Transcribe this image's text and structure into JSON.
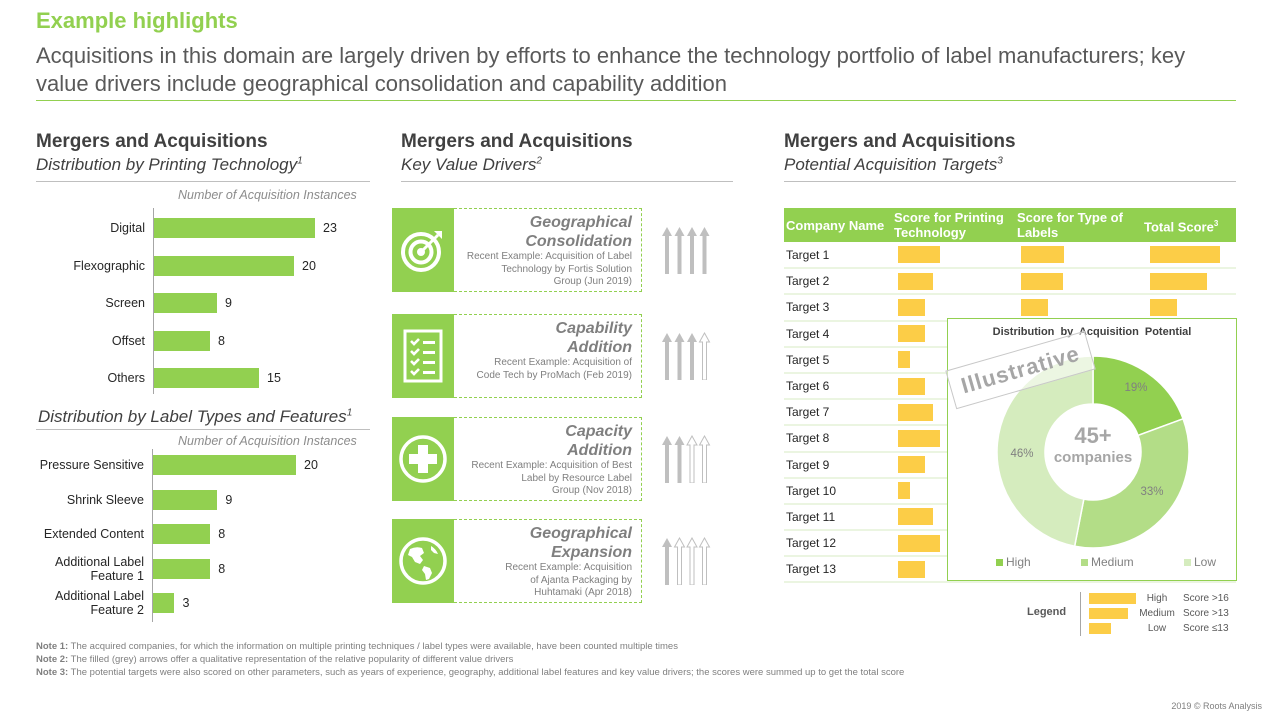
{
  "header": {
    "title": "Example highlights",
    "subtitle": "Acquisitions in this domain are largely driven by efforts to enhance the technology portfolio of label manufacturers; key value drivers include geographical consolidation and capability addition"
  },
  "left_section": {
    "title": "Mergers and Acquisitions",
    "subtitle": "Distribution by Printing Technology",
    "subtitle_sup": "1",
    "second_subtitle": "Distribution by Label Types and Features",
    "second_subtitle_sup": "1"
  },
  "middle_section": {
    "title": "Mergers and Acquisitions",
    "subtitle": "Key Value Drivers",
    "subtitle_sup": "2",
    "drivers": [
      {
        "name_line1": "Geographical",
        "name_line2": "Consolidation",
        "icon": "target-icon",
        "example_lines": [
          "Recent Example:  Acquisition of Label",
          "Technology by Fortis Solution",
          "Group (Jun 2019)"
        ],
        "popularity_filled": 4,
        "popularity_total": 4
      },
      {
        "name_line1": "Capability",
        "name_line2": "Addition",
        "icon": "checklist-icon",
        "example_lines": [
          "Recent Example:  Acquisition of",
          "Code Tech by ProMach  (Feb 2019)"
        ],
        "popularity_filled": 3,
        "popularity_total": 4
      },
      {
        "name_line1": "Capacity",
        "name_line2": "Addition",
        "icon": "plus-circle-icon",
        "example_lines": [
          "Recent Example:  Acquisition of Best",
          "Label by Resource Label",
          "Group (Nov 2018)"
        ],
        "popularity_filled": 2,
        "popularity_total": 4
      },
      {
        "name_line1": "Geographical",
        "name_line2": "Expansion",
        "icon": "globe-icon",
        "example_lines": [
          "Recent Example:  Acquisition",
          "of Ajanta Packaging  by",
          "Huhtamaki  (Apr 2018)"
        ],
        "popularity_filled": 1,
        "popularity_total": 4
      }
    ]
  },
  "right_section": {
    "title": "Mergers and Acquisitions",
    "subtitle": "Potential Acquisition Targets",
    "subtitle_sup": "3",
    "table": {
      "headers": [
        "Company Name",
        "Score for Printing Technology",
        "Score for Type of Labels",
        "Total Score"
      ],
      "total_header_sup": "3",
      "score_scale_note": "bar values are relative score levels (fraction of the longest bar)",
      "rows": [
        {
          "name": "Target 1",
          "printing": 0.6,
          "labels": 0.61,
          "total": 1.0
        },
        {
          "name": "Target 2",
          "printing": 0.5,
          "labels": 0.6,
          "total": 0.81
        },
        {
          "name": "Target 3",
          "printing": 0.39,
          "labels": 0.39,
          "total": 0.39
        },
        {
          "name": "Target 4",
          "printing": 0.39
        },
        {
          "name": "Target 5",
          "printing": 0.17
        },
        {
          "name": "Target 6",
          "printing": 0.39
        },
        {
          "name": "Target 7",
          "printing": 0.5
        },
        {
          "name": "Target 8",
          "printing": 0.6
        },
        {
          "name": "Target 9",
          "printing": 0.39
        },
        {
          "name": "Target 10",
          "printing": 0.17
        },
        {
          "name": "Target 11",
          "printing": 0.5
        },
        {
          "name": "Target 12",
          "printing": 0.6
        },
        {
          "name": "Target 13",
          "printing": 0.39
        }
      ]
    },
    "stamp": "Illustrative",
    "legend": {
      "label": "Legend",
      "items": [
        {
          "level": "High",
          "rule": "Score >16",
          "relative": 1.0
        },
        {
          "level": "Medium",
          "rule": "Score >13",
          "relative": 0.83
        },
        {
          "level": "Low",
          "rule": "Score ≤13",
          "relative": 0.47
        }
      ]
    }
  },
  "notes": [
    {
      "label": "Note 1:",
      "text": " The  acquired companies,  for which the information on multiple  printing techniques / label types were available, have been  counted multiple  times"
    },
    {
      "label": "Note 2:",
      "text": " The  filled (grey) arrows offer a qualitative representation of the relative popularity of different value drivers"
    },
    {
      "label": "Note 3:",
      "text": " The  potential targets were also scored on other  parameters, such as years of experience, geography, additional label  features and key value drivers; the scores were summed up to get the total score"
    }
  ],
  "copyright": "2019 © Roots Analysis",
  "colors": {
    "brand_green": "#92d050",
    "score_yellow": "#fccd47",
    "donut_high": "#92d050",
    "donut_medium": "#b3dd87",
    "donut_low": "#d5ecbe",
    "arrow_grey": "#bfbfbf"
  },
  "chart_data": [
    {
      "type": "bar",
      "orientation": "horizontal",
      "title": "Distribution by Printing Technology",
      "xlabel": "Number of Acquisition Instances",
      "categories": [
        "Digital",
        "Flexographic",
        "Screen",
        "Offset",
        "Others"
      ],
      "values": [
        23,
        20,
        9,
        8,
        15
      ],
      "xlim": [
        0,
        25
      ],
      "grid": false
    },
    {
      "type": "bar",
      "orientation": "horizontal",
      "title": "Distribution by Label Types and Features",
      "xlabel": "Number of Acquisition Instances",
      "categories": [
        "Pressure Sensitive",
        "Shrink Sleeve",
        "Extended Content",
        "Additional Label Feature 1",
        "Additional Label Feature 2"
      ],
      "category_lines": [
        [
          "Pressure Sensitive"
        ],
        [
          "Shrink Sleeve"
        ],
        [
          "Extended Content"
        ],
        [
          "Additional Label",
          "Feature 1"
        ],
        [
          "Additional Label",
          "Feature 2"
        ]
      ],
      "values": [
        20,
        9,
        8,
        8,
        3
      ],
      "xlim": [
        0,
        25
      ],
      "grid": false
    },
    {
      "type": "pie",
      "donut": true,
      "title": "Distribution  by Acquisition  Potential",
      "center_text": [
        "45+",
        "companies"
      ],
      "categories": [
        "High",
        "Medium",
        "Low"
      ],
      "values": [
        19,
        33,
        46
      ],
      "labels": [
        "19%",
        "33%",
        "46%"
      ],
      "legend": "bottom"
    }
  ]
}
